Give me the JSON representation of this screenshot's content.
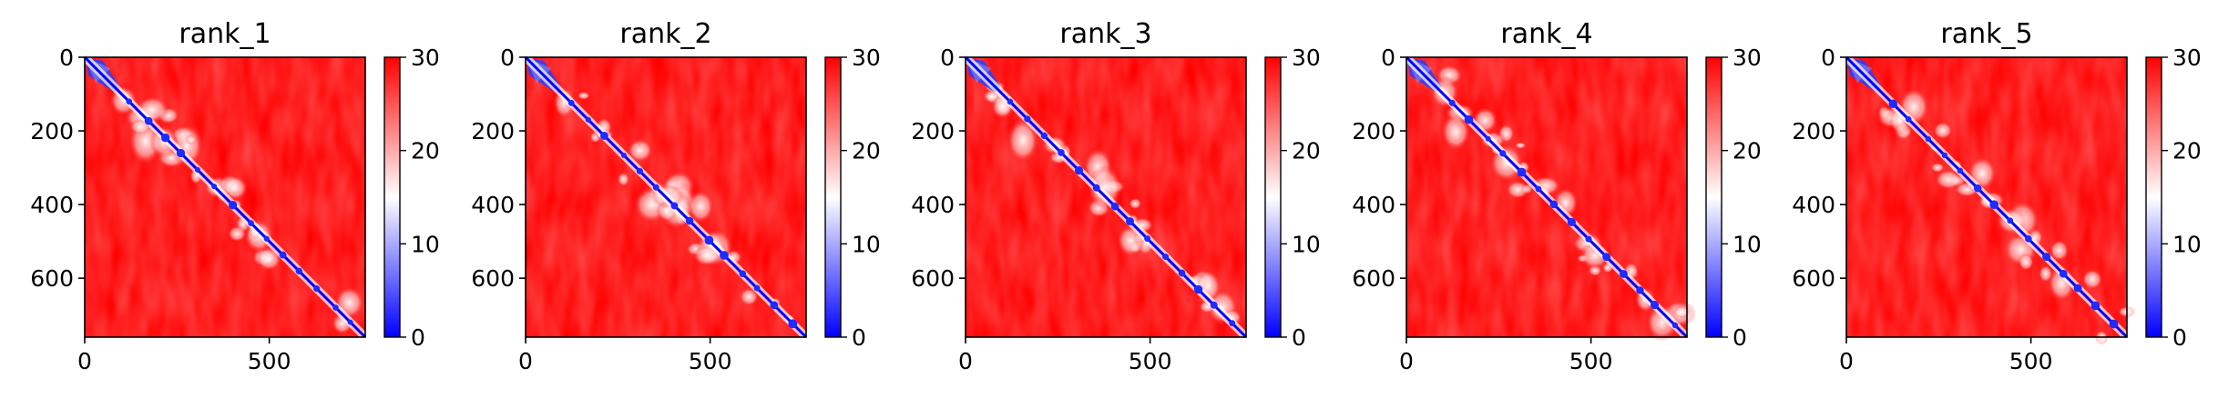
{
  "chart_data": {
    "type": "heatmap",
    "colormap": {
      "name": "bwr",
      "low": "#0000ff",
      "mid": "#ffffff",
      "high": "#ff0000"
    },
    "value_range": [
      0,
      30
    ],
    "colorbar_ticks": [
      0,
      10,
      20,
      30
    ],
    "x_ticks": [
      0,
      500
    ],
    "y_ticks": [
      0,
      200,
      400,
      600
    ],
    "matrix_size": 760,
    "panels": [
      {
        "title": "rank_1",
        "x_tick_labels": [
          "0",
          "500"
        ],
        "y_tick_labels": [
          "0",
          "200",
          "400",
          "600"
        ],
        "colorbar_tick_labels": [
          "0",
          "10",
          "20",
          "30"
        ]
      },
      {
        "title": "rank_2",
        "x_tick_labels": [
          "0",
          "500"
        ],
        "y_tick_labels": [
          "0",
          "200",
          "400",
          "600"
        ],
        "colorbar_tick_labels": [
          "0",
          "10",
          "20",
          "30"
        ]
      },
      {
        "title": "rank_3",
        "x_tick_labels": [
          "0",
          "500"
        ],
        "y_tick_labels": [
          "0",
          "200",
          "400",
          "600"
        ],
        "colorbar_tick_labels": [
          "0",
          "10",
          "20",
          "30"
        ]
      },
      {
        "title": "rank_4",
        "x_tick_labels": [
          "0",
          "500"
        ],
        "y_tick_labels": [
          "0",
          "200",
          "400",
          "600"
        ],
        "colorbar_tick_labels": [
          "0",
          "10",
          "20",
          "30"
        ]
      },
      {
        "title": "rank_5",
        "x_tick_labels": [
          "0",
          "500"
        ],
        "y_tick_labels": [
          "0",
          "200",
          "400",
          "600"
        ],
        "colorbar_tick_labels": [
          "0",
          "10",
          "20",
          "30"
        ]
      }
    ]
  }
}
